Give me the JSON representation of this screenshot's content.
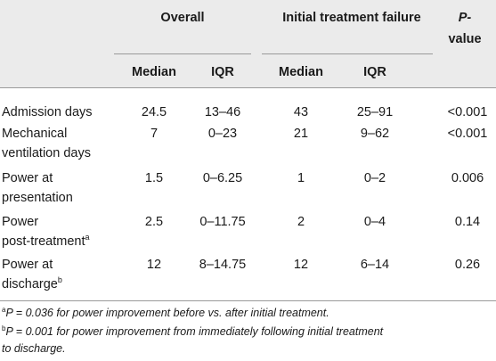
{
  "header": {
    "overall": "Overall",
    "failure": "Initial treatment failure",
    "pvalue_line1": "P-",
    "pvalue_line2": "value",
    "median": "Median",
    "iqr": "IQR"
  },
  "rows": [
    {
      "label1": "Admission days",
      "label2": "",
      "sup": "",
      "overall_median": "24.5",
      "overall_iqr": "13–46",
      "fail_median": "43",
      "fail_iqr": "25–91",
      "p": "<0.001"
    },
    {
      "label1": "Mechanical",
      "label2": "ventilation days",
      "sup": "",
      "overall_median": "7",
      "overall_iqr": "0–23",
      "fail_median": "21",
      "fail_iqr": "9–62",
      "p": "<0.001"
    },
    {
      "label1": "Power at",
      "label2": "presentation",
      "sup": "",
      "overall_median": "1.5",
      "overall_iqr": "0–6.25",
      "fail_median": "1",
      "fail_iqr": "0–2",
      "p": "0.006"
    },
    {
      "label1": "Power",
      "label2": "post-treatment",
      "sup": "a",
      "overall_median": "2.5",
      "overall_iqr": "0–11.75",
      "fail_median": "2",
      "fail_iqr": "0–4",
      "p": "0.14"
    },
    {
      "label1": "Power at",
      "label2": "discharge",
      "sup": "b",
      "overall_median": "12",
      "overall_iqr": "8–14.75",
      "fail_median": "12",
      "fail_iqr": "6–14",
      "p": "0.26"
    }
  ],
  "footnotes": {
    "a_marker": "a",
    "a_text": "P = 0.036 for power improvement before vs. after initial treatment.",
    "b_marker": "b",
    "b_text_line1": "P  =  0.001  for  power  improvement  from  immediately  following  initial  treatment",
    "b_text_line2": "to discharge."
  }
}
